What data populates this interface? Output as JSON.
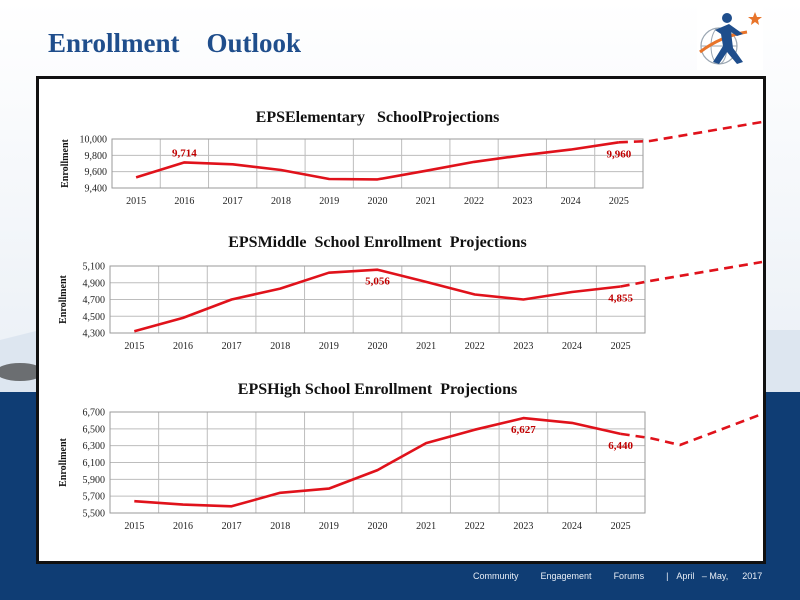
{
  "slide": {
    "title": "Enrollment    Outlook",
    "footer": {
      "community": "Community",
      "engagement": "Engagement",
      "forums": "Forums",
      "separator": "|",
      "date_range": "April   – May,",
      "year": "2017"
    },
    "colors": {
      "title": "#1f4e8c",
      "series": "#e0121b",
      "label": "#c00000",
      "band": "#0f3d74"
    },
    "logo_icon": "person-globe-star-icon"
  },
  "chart_data": [
    {
      "type": "line",
      "title": "EPSElementary   SchoolProjections",
      "ylabel": "Enrollment",
      "xlabel": "",
      "x": [
        "2015",
        "2016",
        "2017",
        "2018",
        "2019",
        "2020",
        "2021",
        "2022",
        "2023",
        "2024",
        "2025"
      ],
      "series": [
        {
          "values": [
            9530,
            9714,
            9690,
            9620,
            9510,
            9505,
            9610,
            9720,
            9800,
            9870,
            9960
          ]
        }
      ],
      "ylim": [
        9400,
        10000
      ],
      "yticks": [
        "9,400",
        "9,600",
        "9,800",
        "10,000"
      ],
      "yticks_values": [
        9400,
        9600,
        9800,
        10000
      ],
      "grid": true,
      "annotations": [
        {
          "x": "2016",
          "text": "9,714",
          "value": 9714
        },
        {
          "x": "2025",
          "text": "9,960",
          "value": 9960
        }
      ],
      "trend_extension": "dashed-up"
    },
    {
      "type": "line",
      "title": "EPSMiddle  School Enrollment  Projections",
      "ylabel": "Enrollment",
      "xlabel": "",
      "x": [
        "2015",
        "2016",
        "2017",
        "2018",
        "2019",
        "2020",
        "2021",
        "2022",
        "2023",
        "2024",
        "2025"
      ],
      "series": [
        {
          "values": [
            4320,
            4480,
            4700,
            4830,
            5020,
            5056,
            4910,
            4760,
            4700,
            4790,
            4855
          ]
        }
      ],
      "ylim": [
        4300,
        5100
      ],
      "yticks": [
        "4,300",
        "4,500",
        "4,700",
        "4,900",
        "5,100"
      ],
      "yticks_values": [
        4300,
        4500,
        4700,
        4900,
        5100
      ],
      "grid": true,
      "annotations": [
        {
          "x": "2020",
          "text": "5,056",
          "value": 5056
        },
        {
          "x": "2025",
          "text": "4,855",
          "value": 4855
        }
      ],
      "trend_extension": "dashed-up"
    },
    {
      "type": "line",
      "title": "EPSHigh School Enrollment  Projections",
      "ylabel": "Enrollment",
      "xlabel": "",
      "x": [
        "2015",
        "2016",
        "2017",
        "2018",
        "2019",
        "2020",
        "2021",
        "2022",
        "2023",
        "2024",
        "2025"
      ],
      "series": [
        {
          "values": [
            5640,
            5600,
            5580,
            5740,
            5790,
            6010,
            6330,
            6490,
            6627,
            6570,
            6440
          ]
        }
      ],
      "ylim": [
        5500,
        6700
      ],
      "yticks": [
        "5,500",
        "5,700",
        "5,900",
        "6,100",
        "6,300",
        "6,500",
        "6,700"
      ],
      "yticks_values": [
        5500,
        5700,
        5900,
        6100,
        6300,
        6500,
        6700
      ],
      "grid": true,
      "annotations": [
        {
          "x": "2023",
          "text": "6,627",
          "value": 6627
        },
        {
          "x": "2025",
          "text": "6,440",
          "value": 6440
        }
      ],
      "trend_extension": "dashed-down-then-up"
    }
  ]
}
